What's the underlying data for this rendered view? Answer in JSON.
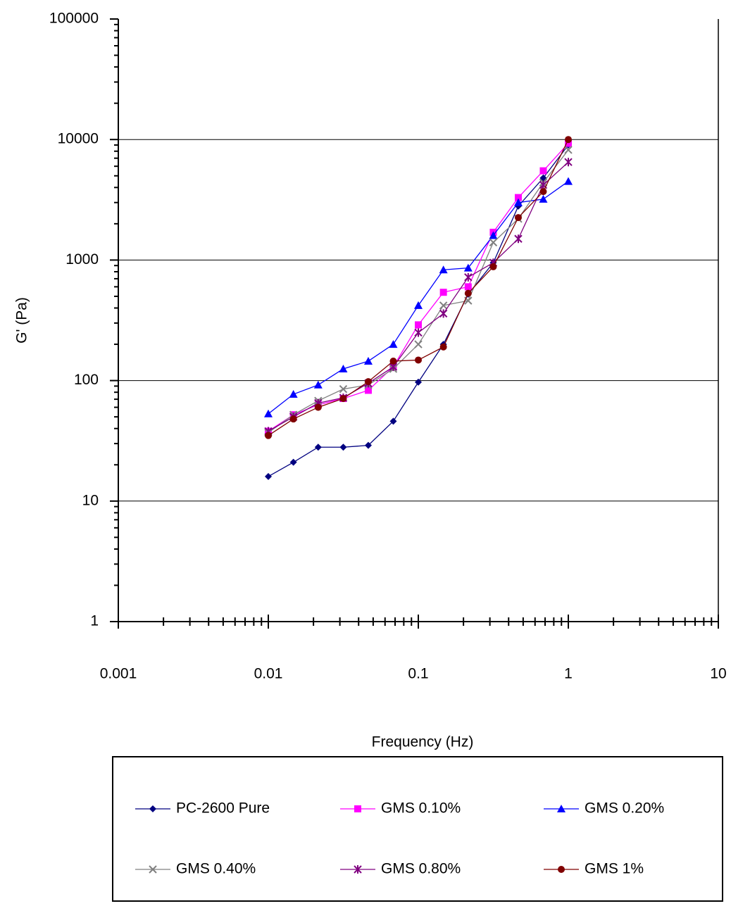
{
  "chart_data": {
    "type": "line",
    "x_label": "Frequency (Hz)",
    "y_label": "G' (Pa)",
    "x": [
      0.01,
      0.0147,
      0.0215,
      0.0316,
      0.0464,
      0.0681,
      0.1,
      0.147,
      0.215,
      0.316,
      0.464,
      0.681,
      1
    ],
    "series": [
      {
        "name": "PC-2600 Pure",
        "color": "#000080",
        "marker": "diamond",
        "values": [
          16,
          21,
          28,
          28,
          29,
          46,
          97,
          200,
          520,
          950,
          2800,
          4800,
          9000
        ]
      },
      {
        "name": "GMS 0.10%",
        "color": "#ff00ff",
        "marker": "square",
        "values": [
          38,
          52,
          63,
          71,
          83,
          130,
          290,
          540,
          600,
          1700,
          3300,
          5500,
          9300
        ]
      },
      {
        "name": "GMS 0.20%",
        "color": "#0000ff",
        "marker": "triangle",
        "values": [
          53,
          77,
          92,
          125,
          145,
          200,
          420,
          830,
          860,
          1600,
          3000,
          3200,
          4500
        ]
      },
      {
        "name": "GMS 0.40%",
        "color": "#808080",
        "marker": "x",
        "values": [
          37,
          52,
          68,
          85,
          92,
          125,
          200,
          420,
          460,
          1400,
          2200,
          4400,
          8200
        ]
      },
      {
        "name": "GMS 0.80%",
        "color": "#800080",
        "marker": "star",
        "values": [
          38,
          50,
          65,
          72,
          95,
          130,
          250,
          360,
          720,
          950,
          1500,
          4200,
          6500
        ]
      },
      {
        "name": "GMS 1%",
        "color": "#800000",
        "marker": "circle",
        "values": [
          35,
          48,
          60,
          71,
          98,
          145,
          148,
          190,
          530,
          880,
          2250,
          3700,
          10000
        ]
      }
    ],
    "xlog": true,
    "ylog": true,
    "xlim": [
      0.001,
      10
    ],
    "ylim": [
      1,
      100000
    ],
    "xticks": [
      0.001,
      0.01,
      0.1,
      1,
      10
    ],
    "yticks": [
      1,
      10,
      100,
      1000,
      10000,
      100000
    ],
    "minor_ticks": true,
    "grid": true,
    "legend": "bottom"
  }
}
